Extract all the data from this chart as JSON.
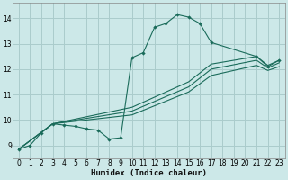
{
  "bg_color": "#cce8e8",
  "grid_color": "#aacccc",
  "line_color": "#1a6b5a",
  "xlabel": "Humidex (Indice chaleur)",
  "xlim": [
    -0.5,
    23.5
  ],
  "ylim": [
    8.5,
    14.6
  ],
  "yticks": [
    9,
    10,
    11,
    12,
    13,
    14
  ],
  "xticks": [
    0,
    1,
    2,
    3,
    4,
    5,
    6,
    7,
    8,
    9,
    10,
    11,
    12,
    13,
    14,
    15,
    16,
    17,
    18,
    19,
    20,
    21,
    22,
    23
  ],
  "line_main": {
    "x": [
      0,
      1,
      2,
      3,
      4,
      5,
      6,
      7,
      8,
      9,
      10,
      11,
      12,
      13,
      14,
      15,
      16,
      17,
      21,
      22,
      23
    ],
    "y": [
      8.85,
      9.0,
      9.5,
      9.85,
      9.8,
      9.75,
      9.65,
      9.6,
      9.25,
      9.3,
      12.45,
      12.65,
      13.65,
      13.8,
      14.15,
      14.05,
      13.8,
      13.05,
      12.5,
      12.1,
      12.35
    ]
  },
  "line1": {
    "x": [
      0,
      3,
      10,
      15,
      17,
      21,
      22,
      23
    ],
    "y": [
      8.85,
      9.85,
      10.5,
      11.5,
      12.2,
      12.5,
      12.15,
      12.35
    ]
  },
  "line2": {
    "x": [
      0,
      3,
      10,
      15,
      17,
      21,
      22,
      23
    ],
    "y": [
      8.85,
      9.85,
      10.35,
      11.3,
      12.0,
      12.35,
      12.05,
      12.25
    ]
  },
  "line3": {
    "x": [
      0,
      3,
      10,
      15,
      17,
      21,
      22,
      23
    ],
    "y": [
      8.85,
      9.85,
      10.2,
      11.1,
      11.75,
      12.15,
      11.95,
      12.1
    ]
  }
}
